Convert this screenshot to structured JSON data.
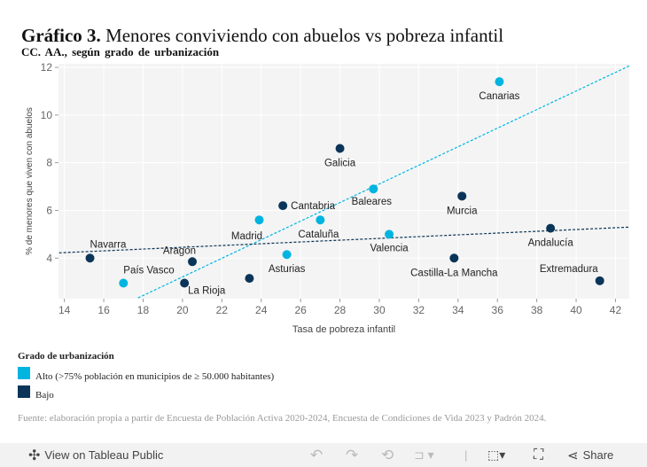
{
  "title_bold": "Gráfico 3.",
  "title_rest": "Menores conviviendo con abuelos vs pobreza infantil",
  "subtitle": "CC. AA., según grado de urbanización",
  "colors": {
    "alto": "#00b4e0",
    "bajo": "#0b3558",
    "plot_bg": "#f4f4f4"
  },
  "chart_data": {
    "type": "scatter",
    "xlabel": "Tasa de pobreza infantil",
    "ylabel": "% de menores que viven con abuelos",
    "xlim": [
      13.7,
      42.7
    ],
    "ylim": [
      2.3,
      12.15
    ],
    "xticks": [
      14,
      16,
      18,
      20,
      22,
      24,
      26,
      28,
      30,
      32,
      34,
      36,
      38,
      40,
      42
    ],
    "yticks": [
      4,
      6,
      8,
      10,
      12
    ],
    "grid": true,
    "points": [
      {
        "label": "Canarias",
        "x": 36.1,
        "y": 11.4,
        "group": "Alto"
      },
      {
        "label": "Galicia",
        "x": 28.0,
        "y": 8.6,
        "group": "Bajo"
      },
      {
        "label": "Baleares",
        "x": 29.7,
        "y": 6.9,
        "group": "Alto"
      },
      {
        "label": "Murcia",
        "x": 34.2,
        "y": 6.6,
        "group": "Bajo"
      },
      {
        "label": "Cantabria",
        "x": 25.1,
        "y": 6.2,
        "group": "Bajo"
      },
      {
        "label": "Madrid",
        "x": 23.9,
        "y": 5.6,
        "group": "Alto"
      },
      {
        "label": "Cataluña",
        "x": 27.0,
        "y": 5.6,
        "group": "Alto"
      },
      {
        "label": "Valencia",
        "x": 30.5,
        "y": 5.0,
        "group": "Alto"
      },
      {
        "label": "Andalucía",
        "x": 38.7,
        "y": 5.25,
        "group": "Bajo"
      },
      {
        "label": "Asturias",
        "x": 25.3,
        "y": 4.15,
        "group": "Alto"
      },
      {
        "label": "Navarra",
        "x": 15.3,
        "y": 4.0,
        "group": "Bajo"
      },
      {
        "label": "Aragón",
        "x": 20.5,
        "y": 3.85,
        "group": "Bajo"
      },
      {
        "label": "País Vasco",
        "x": 17.0,
        "y": 2.95,
        "group": "Alto"
      },
      {
        "label": "La Rioja",
        "x": 20.1,
        "y": 2.95,
        "group": "Bajo"
      },
      {
        "label": "",
        "x": 23.4,
        "y": 3.15,
        "group": "Bajo"
      },
      {
        "label": "Castilla-La Mancha",
        "x": 33.8,
        "y": 4.0,
        "group": "Bajo"
      },
      {
        "label": "Extremadura",
        "x": 41.2,
        "y": 3.05,
        "group": "Bajo"
      }
    ],
    "trendlines": [
      {
        "group": "Alto",
        "from": [
          17.74,
          2.33
        ],
        "to": [
          42.72,
          12.07
        ],
        "style": "dashed"
      },
      {
        "group": "Bajo",
        "from": [
          13.73,
          4.22
        ],
        "to": [
          42.72,
          5.3
        ],
        "style": "dashed"
      }
    ]
  },
  "legend": {
    "title": "Grado de urbanización",
    "items": [
      {
        "label": "Alto (>75% población en municipios de ≥ 50.000 habitantes)",
        "color": "#00b4e0"
      },
      {
        "label": "Bajo",
        "color": "#0b3558"
      }
    ]
  },
  "source": "Fuente: elaboración propia a partir de Encuesta de Población Activa 2020-2024, Encuesta de Condiciones de Vida 2023 y Padrón 2024.",
  "toolbar": {
    "view_label": "View on Tableau Public",
    "share_label": "Share"
  }
}
